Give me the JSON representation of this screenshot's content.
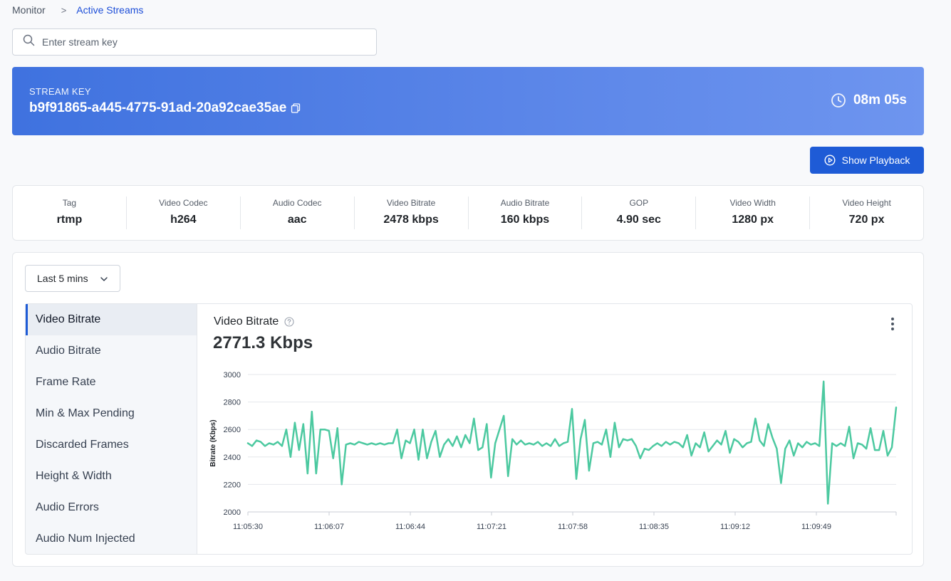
{
  "breadcrumb": {
    "root": "Monitor",
    "separator": ">",
    "current": "Active Streams"
  },
  "search": {
    "placeholder": "Enter stream key",
    "value": ""
  },
  "stream": {
    "label": "STREAM KEY",
    "key": "b9f91865-a445-4775-91ad-20a92cae35ae",
    "elapsed": "08m 05s"
  },
  "playback_button": "Show Playback",
  "stats": [
    {
      "label": "Tag",
      "value": "rtmp"
    },
    {
      "label": "Video Codec",
      "value": "h264"
    },
    {
      "label": "Audio Codec",
      "value": "aac"
    },
    {
      "label": "Video Bitrate",
      "value": "2478 kbps"
    },
    {
      "label": "Audio Bitrate",
      "value": "160 kbps"
    },
    {
      "label": "GOP",
      "value": "4.90 sec"
    },
    {
      "label": "Video Width",
      "value": "1280 px"
    },
    {
      "label": "Video Height",
      "value": "720 px"
    }
  ],
  "time_range": {
    "selected": "Last 5 mins"
  },
  "metrics": [
    {
      "label": "Video Bitrate",
      "active": true
    },
    {
      "label": "Audio Bitrate",
      "active": false
    },
    {
      "label": "Frame Rate",
      "active": false
    },
    {
      "label": "Min & Max Pending",
      "active": false
    },
    {
      "label": "Discarded Frames",
      "active": false
    },
    {
      "label": "Height & Width",
      "active": false
    },
    {
      "label": "Audio Errors",
      "active": false
    },
    {
      "label": "Audio Num Injected",
      "active": false
    }
  ],
  "chart_panel": {
    "title": "Video Bitrate",
    "current_value": "2771.3 Kbps"
  },
  "colors": {
    "accent": "#1e5bd6",
    "line": "#4cc9a0",
    "banner_start": "#3f72df",
    "banner_end": "#6e95ef"
  },
  "chart_data": {
    "type": "line",
    "title": "",
    "xlabel": "",
    "ylabel": "Bitrate (Kbps)",
    "ylim": [
      2000,
      3000
    ],
    "yticks": [
      2000,
      2200,
      2400,
      2600,
      2800,
      3000
    ],
    "xticks": [
      "11:05:30",
      "11:06:07",
      "11:06:44",
      "11:07:21",
      "11:07:58",
      "11:08:35",
      "11:09:12",
      "11:09:49"
    ],
    "grid": true,
    "series": [
      {
        "values": [
          2500,
          2480,
          2520,
          2510,
          2480,
          2500,
          2490,
          2510,
          2480,
          2600,
          2400,
          2650,
          2450,
          2640,
          2280,
          2730,
          2280,
          2600,
          2600,
          2590,
          2390,
          2610,
          2200,
          2490,
          2500,
          2490,
          2510,
          2500,
          2490,
          2500,
          2490,
          2500,
          2490,
          2500,
          2500,
          2600,
          2390,
          2520,
          2500,
          2600,
          2380,
          2600,
          2390,
          2510,
          2590,
          2400,
          2490,
          2530,
          2480,
          2550,
          2470,
          2560,
          2500,
          2680,
          2450,
          2470,
          2640,
          2250,
          2500,
          2600,
          2700,
          2260,
          2530,
          2490,
          2520,
          2490,
          2500,
          2490,
          2510,
          2480,
          2500,
          2480,
          2530,
          2480,
          2500,
          2510,
          2750,
          2240,
          2530,
          2670,
          2300,
          2500,
          2510,
          2490,
          2600,
          2400,
          2650,
          2470,
          2530,
          2520,
          2530,
          2480,
          2390,
          2460,
          2450,
          2480,
          2500,
          2480,
          2510,
          2490,
          2510,
          2500,
          2470,
          2560,
          2410,
          2500,
          2470,
          2580,
          2440,
          2480,
          2520,
          2490,
          2590,
          2430,
          2530,
          2510,
          2470,
          2500,
          2510,
          2680,
          2520,
          2480,
          2640,
          2540,
          2460,
          2210,
          2460,
          2520,
          2410,
          2500,
          2470,
          2510,
          2490,
          2500,
          2480,
          2950,
          2060,
          2500,
          2480,
          2500,
          2480,
          2620,
          2390,
          2500,
          2490,
          2460,
          2610,
          2450,
          2450,
          2590,
          2410,
          2470,
          2760
        ]
      }
    ]
  }
}
